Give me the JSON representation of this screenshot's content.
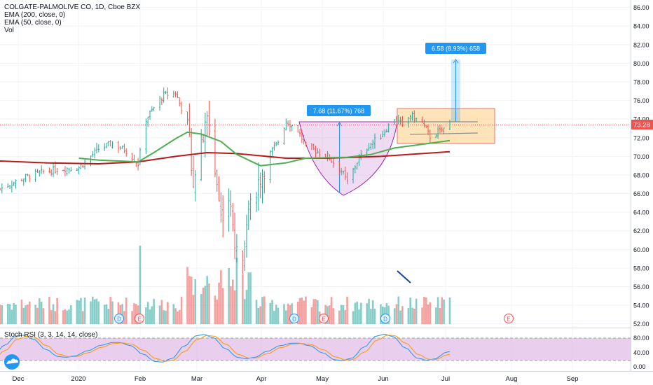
{
  "header": {
    "title": "COLGATE-PALMOLIVE CO, 1D, Cboe BZX",
    "indicators": [
      "EMA (200, close, 0)",
      "EMA (50, close, 0)",
      "Vol"
    ]
  },
  "rsi_panel": {
    "label": "Stoch RSI (3, 3, 14, 14, close)",
    "ticks": [
      "80.00",
      "40.00",
      "0.00"
    ]
  },
  "price_axis": {
    "ticks": [
      "86.00",
      "84.00",
      "82.00",
      "80.00",
      "78.00",
      "76.00",
      "74.00",
      "72.00",
      "70.00",
      "68.00",
      "66.00",
      "64.00",
      "62.00",
      "60.00",
      "58.00",
      "56.00",
      "54.00",
      "52.00"
    ],
    "last_price": "73.28"
  },
  "time_axis": {
    "labels": [
      "Dec",
      "2020",
      "Feb",
      "Mar",
      "Apr",
      "May",
      "Jun",
      "Jul",
      "Aug",
      "Sep"
    ]
  },
  "annotations": {
    "measure_cup": "7.68 (11.67%) 768",
    "measure_target": "6.58 (8.93%) 658"
  },
  "event_markers": [
    "D",
    "E",
    "D",
    "E",
    "D",
    "E"
  ],
  "colors": {
    "up": "#26a69a",
    "down": "#ef5350",
    "ema50": "#4caf50",
    "ema200": "#b71c1c",
    "last_price": "#ef5350",
    "measure": "#2196f3",
    "cup_fill": "#ce93d8",
    "handle_fill": "#ffcc80",
    "rsi_band": "#e1bee7"
  },
  "chart_data": {
    "type": "candlestick",
    "y_range": [
      51.6,
      86.8
    ],
    "date_start": "2019-11-21",
    "date_end": "2020-07-06",
    "price_waypoints": [
      [
        "2019-11-21",
        66.5
      ],
      [
        "2019-12-02",
        67.6
      ],
      [
        "2019-12-09",
        68.1
      ],
      [
        "2019-12-20",
        68.6
      ],
      [
        "2019-12-31",
        68.8
      ],
      [
        "2020-01-10",
        70.8
      ],
      [
        "2020-01-17",
        71.4
      ],
      [
        "2020-01-24",
        70.6
      ],
      [
        "2020-01-30",
        69.2
      ],
      [
        "2020-02-03",
        74.0
      ],
      [
        "2020-02-07",
        75.2
      ],
      [
        "2020-02-12",
        76.6
      ],
      [
        "2020-02-18",
        76.8
      ],
      [
        "2020-02-24",
        73.6
      ],
      [
        "2020-02-27",
        67.5
      ],
      [
        "2020-03-02",
        71.2
      ],
      [
        "2020-03-05",
        73.8
      ],
      [
        "2020-03-09",
        68.8
      ],
      [
        "2020-03-12",
        63.6
      ],
      [
        "2020-03-16",
        65.5
      ],
      [
        "2020-03-20",
        59.2
      ],
      [
        "2020-03-23",
        59.8
      ],
      [
        "2020-03-25",
        63.8
      ],
      [
        "2020-03-31",
        67.3
      ],
      [
        "2020-04-06",
        70.3
      ],
      [
        "2020-04-10",
        71.6
      ],
      [
        "2020-04-14",
        73.8
      ],
      [
        "2020-04-20",
        72.8
      ],
      [
        "2020-04-24",
        71.1
      ],
      [
        "2020-04-30",
        70.5
      ],
      [
        "2020-05-05",
        70.0
      ],
      [
        "2020-05-12",
        68.5
      ],
      [
        "2020-05-15",
        67.2
      ],
      [
        "2020-05-20",
        69.4
      ],
      [
        "2020-05-26",
        71.2
      ],
      [
        "2020-06-01",
        72.2
      ],
      [
        "2020-06-08",
        74.1
      ],
      [
        "2020-06-12",
        73.4
      ],
      [
        "2020-06-16",
        74.4
      ],
      [
        "2020-06-22",
        73.6
      ],
      [
        "2020-06-26",
        72.1
      ],
      [
        "2020-07-06",
        73.3
      ]
    ],
    "ema50_points": [
      [
        "2019-12-31",
        69.8
      ],
      [
        "2020-01-10",
        69.6
      ],
      [
        "2020-01-30",
        69.4
      ],
      [
        "2020-02-07",
        70.4
      ],
      [
        "2020-02-18",
        71.9
      ],
      [
        "2020-02-24",
        72.6
      ],
      [
        "2020-03-02",
        72.4
      ],
      [
        "2020-03-12",
        71.6
      ],
      [
        "2020-03-20",
        70.2
      ],
      [
        "2020-04-01",
        69.0
      ],
      [
        "2020-04-14",
        69.3
      ],
      [
        "2020-04-24",
        69.8
      ],
      [
        "2020-05-15",
        69.9
      ],
      [
        "2020-05-27",
        70.2
      ],
      [
        "2020-06-08",
        70.9
      ],
      [
        "2020-06-22",
        71.3
      ],
      [
        "2020-07-06",
        71.7
      ]
    ],
    "ema200_points": [
      [
        "2019-11-21",
        69.5
      ],
      [
        "2019-12-15",
        69.3
      ],
      [
        "2020-01-10",
        69.2
      ],
      [
        "2020-01-30",
        69.4
      ],
      [
        "2020-02-18",
        70.0
      ],
      [
        "2020-03-05",
        70.4
      ],
      [
        "2020-03-20",
        70.3
      ],
      [
        "2020-04-14",
        69.8
      ],
      [
        "2020-05-05",
        69.8
      ],
      [
        "2020-06-01",
        70.0
      ],
      [
        "2020-06-22",
        70.3
      ],
      [
        "2020-07-06",
        70.5
      ]
    ],
    "last_price": 73.28,
    "stoch_rsi_range": [
      0,
      100
    ],
    "stoch_rsi_band": [
      20,
      80
    ]
  }
}
